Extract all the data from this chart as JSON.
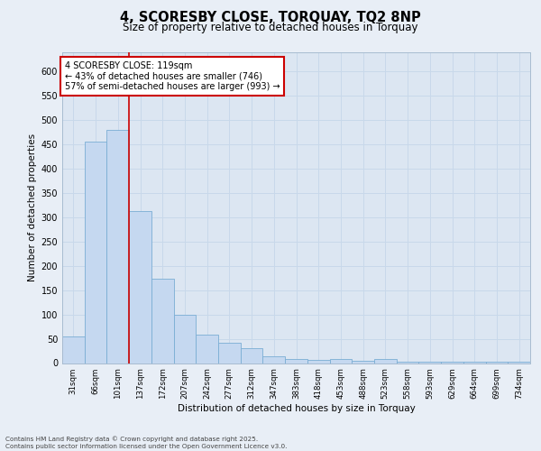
{
  "title": "4, SCORESBY CLOSE, TORQUAY, TQ2 8NP",
  "subtitle": "Size of property relative to detached houses in Torquay",
  "xlabel": "Distribution of detached houses by size in Torquay",
  "ylabel": "Number of detached properties",
  "bar_labels": [
    "31sqm",
    "66sqm",
    "101sqm",
    "137sqm",
    "172sqm",
    "207sqm",
    "242sqm",
    "277sqm",
    "312sqm",
    "347sqm",
    "383sqm",
    "418sqm",
    "453sqm",
    "488sqm",
    "523sqm",
    "558sqm",
    "593sqm",
    "629sqm",
    "664sqm",
    "699sqm",
    "734sqm"
  ],
  "bar_values": [
    55,
    455,
    480,
    312,
    173,
    100,
    58,
    42,
    30,
    14,
    8,
    7,
    8,
    5,
    8,
    2,
    2,
    2,
    2,
    3,
    2
  ],
  "bar_color": "#c5d8f0",
  "bar_edge_color": "#7aadd4",
  "grid_color": "#c8d8ea",
  "background_color": "#dce6f2",
  "fig_background_color": "#e8eef6",
  "red_line_x": 2.5,
  "annotation_text": "4 SCORESBY CLOSE: 119sqm\n← 43% of detached houses are smaller (746)\n57% of semi-detached houses are larger (993) →",
  "annotation_box_color": "#ffffff",
  "annotation_box_edge": "#cc0000",
  "footer_text": "Contains HM Land Registry data © Crown copyright and database right 2025.\nContains public sector information licensed under the Open Government Licence v3.0.",
  "ylim": [
    0,
    640
  ],
  "yticks": [
    0,
    50,
    100,
    150,
    200,
    250,
    300,
    350,
    400,
    450,
    500,
    550,
    600
  ]
}
